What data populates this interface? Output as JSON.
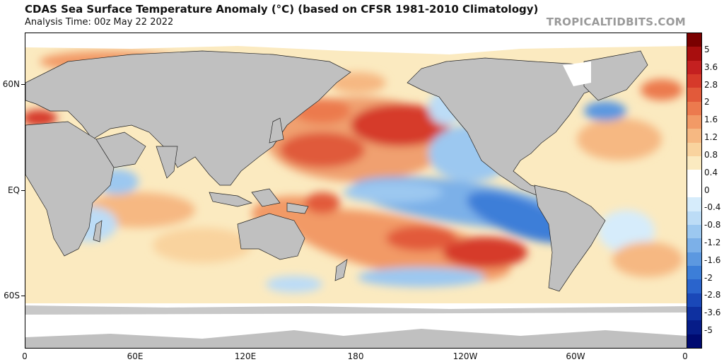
{
  "header": {
    "title": "CDAS Sea Surface Temperature Anomaly (°C) (based on CFSR 1981-2010 Climatology)",
    "subtitle": "Analysis Time: 00z May 22 2022",
    "credit": "TROPICALTIDBITS.COM"
  },
  "map": {
    "projection": "equirectangular, 0 to 360 longitude",
    "land_color": "#c0c0c0",
    "ice_color": "#ffffff",
    "lat_labels": [
      "60N",
      "EQ",
      "60S"
    ],
    "lon_labels": [
      "0",
      "60E",
      "120E",
      "180",
      "120W",
      "60W",
      "0"
    ]
  },
  "colorbar": {
    "labels": [
      "5",
      "3.6",
      "2.8",
      "2",
      "1.6",
      "1.2",
      "0.8",
      "0.4",
      "0",
      "-0.4",
      "-0.8",
      "-1.2",
      "-1.6",
      "-2",
      "-2.8",
      "-3.6",
      "-5"
    ],
    "colors": [
      "#7a0000",
      "#a80e0e",
      "#c42020",
      "#d63a2a",
      "#e25a3a",
      "#ec7a4e",
      "#f29a66",
      "#f6b882",
      "#f9d39e",
      "#fbeac0",
      "#ffffff",
      "#ffffff",
      "#d6ecfb",
      "#bcdcf6",
      "#9cc8f0",
      "#7cb0e8",
      "#5c98e0",
      "#3c7ed8",
      "#2a64cc",
      "#1a48b8",
      "#0e30a0",
      "#061c88",
      "#000a70"
    ]
  }
}
